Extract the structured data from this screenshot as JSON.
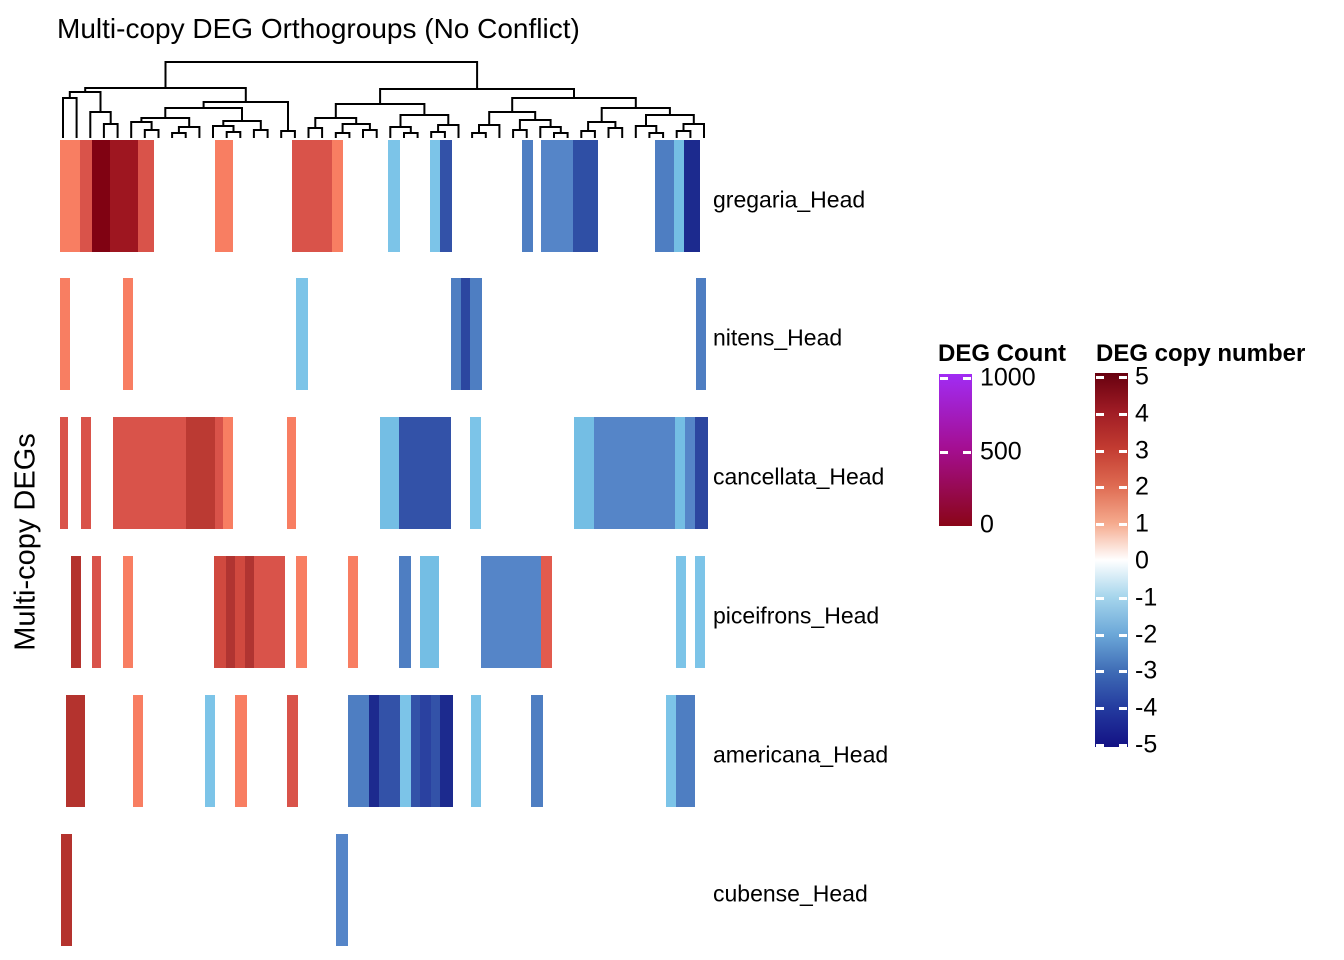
{
  "chart_data": {
    "type": "heatmap",
    "title": "Multi-copy DEG Orthogroups (No Conflict)",
    "ylabel": "Multi-copy DEGs",
    "x_axis_note": "orthogroup columns ordered by top dendrogram (no column labels shown)",
    "color_encoding": "cell color = DEG copy number (red positive, blue negative, white zero/absent)",
    "rows": [
      {
        "label": "gregaria_Head",
        "segments": [
          [
            3,
            20,
            "#F87E62",
            1
          ],
          [
            23,
            12,
            "#D9534A",
            2
          ],
          [
            35,
            18,
            "#800212",
            5
          ],
          [
            53,
            28,
            "#9E1620",
            4
          ],
          [
            81,
            16,
            "#D9534A",
            2
          ],
          [
            158,
            18,
            "#F87E62",
            1
          ],
          [
            235,
            40,
            "#D9534A",
            2
          ],
          [
            275,
            11,
            "#F87E62",
            1
          ],
          [
            331,
            12,
            "#7CC4E8",
            -1
          ],
          [
            373,
            10,
            "#7CC4E8",
            -1
          ],
          [
            383,
            12,
            "#3352A8",
            -3
          ],
          [
            465,
            11,
            "#4E7EC2",
            -2
          ],
          [
            484,
            32,
            "#5585C8",
            -2
          ],
          [
            516,
            25,
            "#2F4FA5",
            -3
          ],
          [
            598,
            19,
            "#4E7EC2",
            -2
          ],
          [
            617,
            10,
            "#74BEE4",
            -1
          ],
          [
            627,
            16,
            "#1C2A8E",
            -4
          ]
        ]
      },
      {
        "label": "nitens_Head",
        "segments": [
          [
            3,
            10,
            "#F87E62",
            1
          ],
          [
            66,
            10,
            "#F87E62",
            1
          ],
          [
            239,
            12,
            "#7CC4E8",
            -1
          ],
          [
            394,
            10,
            "#4E7EC2",
            -2
          ],
          [
            404,
            9,
            "#2C46A0",
            -3
          ],
          [
            413,
            12,
            "#4E7EC2",
            -2
          ],
          [
            639,
            10,
            "#4E7EC2",
            -2
          ]
        ]
      },
      {
        "label": "cancellata_Head",
        "segments": [
          [
            3,
            8,
            "#D9534A",
            2
          ],
          [
            24,
            10,
            "#D9534A",
            2
          ],
          [
            56,
            73,
            "#D9534A",
            2
          ],
          [
            129,
            29,
            "#BB3A33",
            3
          ],
          [
            158,
            8,
            "#D9534A",
            2
          ],
          [
            166,
            10,
            "#F87E62",
            1
          ],
          [
            230,
            9,
            "#F87E62",
            1
          ],
          [
            323,
            19,
            "#74BEE4",
            -1
          ],
          [
            342,
            52,
            "#3352A8",
            -3
          ],
          [
            413,
            11,
            "#7CC4E8",
            -1
          ],
          [
            517,
            20,
            "#74BEE4",
            -1
          ],
          [
            537,
            81,
            "#5585C8",
            -2
          ],
          [
            618,
            10,
            "#74BEE4",
            -1
          ],
          [
            628,
            10,
            "#5585C8",
            -2
          ],
          [
            638,
            13,
            "#2C46A0",
            -3
          ]
        ]
      },
      {
        "label": "piceifrons_Head",
        "segments": [
          [
            14,
            10,
            "#B4332E",
            3
          ],
          [
            35,
            9,
            "#D9534A",
            2
          ],
          [
            66,
            10,
            "#F87E62",
            1
          ],
          [
            157,
            12,
            "#D0493F",
            2
          ],
          [
            169,
            9,
            "#B03431",
            3
          ],
          [
            178,
            10,
            "#D0493F",
            2
          ],
          [
            188,
            9,
            "#B03431",
            3
          ],
          [
            197,
            31,
            "#D9534A",
            2
          ],
          [
            239,
            11,
            "#F87E62",
            1
          ],
          [
            291,
            10,
            "#F87E62",
            1
          ],
          [
            342,
            12,
            "#4E7EC2",
            -2
          ],
          [
            363,
            19,
            "#74BEE4",
            -1
          ],
          [
            424,
            60,
            "#5585C8",
            -2
          ],
          [
            484,
            11,
            "#E25B4E",
            2
          ],
          [
            619,
            10,
            "#7CC4E8",
            -1
          ],
          [
            638,
            10,
            "#7CC4E8",
            -1
          ]
        ]
      },
      {
        "label": "americana_Head",
        "segments": [
          [
            9,
            19,
            "#B4332E",
            3
          ],
          [
            76,
            10,
            "#F87E62",
            1
          ],
          [
            148,
            10,
            "#7CC4E8",
            -1
          ],
          [
            178,
            12,
            "#F87E62",
            1
          ],
          [
            230,
            11,
            "#D9534A",
            2
          ],
          [
            291,
            21,
            "#4E7EC2",
            -2
          ],
          [
            312,
            10,
            "#1C2A8E",
            -4
          ],
          [
            322,
            21,
            "#3352A8",
            -3
          ],
          [
            343,
            11,
            "#7CC4E8",
            -1
          ],
          [
            354,
            9,
            "#3352A8",
            -3
          ],
          [
            363,
            11,
            "#2A41A0",
            -3
          ],
          [
            374,
            9,
            "#3352A8",
            -3
          ],
          [
            383,
            13,
            "#1C2A8E",
            -4
          ],
          [
            414,
            10,
            "#7CC4E8",
            -1
          ],
          [
            474,
            12,
            "#4E7EC2",
            -2
          ],
          [
            609,
            10,
            "#7CC4E8",
            -1
          ],
          [
            619,
            19,
            "#4E7EC2",
            -2
          ]
        ]
      },
      {
        "label": "cubense_Head",
        "segments": [
          [
            4,
            11,
            "#B4332E",
            3
          ],
          [
            279,
            12,
            "#5585C8",
            -2
          ]
        ]
      }
    ],
    "legends": {
      "deg_count": {
        "title": "DEG Count",
        "range": [
          0,
          1000
        ],
        "ticks": [
          {
            "label": "1000",
            "dash": true
          },
          {
            "label": "500",
            "dash": true
          },
          {
            "label": "0",
            "dash": false
          }
        ],
        "gradient": [
          "#A12CF4",
          "#A40E8F",
          "#8A0517"
        ]
      },
      "deg_copy_number": {
        "title": "DEG copy number",
        "range": [
          -5,
          5
        ],
        "ticks": [
          "5",
          "4",
          "3",
          "2",
          "1",
          "0",
          "-1",
          "-2",
          "-3",
          "-4",
          "-5"
        ],
        "gradient": [
          "#67000F",
          "#9E1B24",
          "#C23B31",
          "#DE6A51",
          "#F5A98C",
          "#FFFFFF",
          "#A5D5EC",
          "#6BA7D8",
          "#3E6BB5",
          "#23399E",
          "#131184"
        ]
      }
    },
    "dendrogram": {
      "leaf_count": 48,
      "tree": [
        62,
        [
          88,
          [
            92,
            [
              98,
              0,
              0
            ],
            [
              112,
              0,
              [
                124,
                0,
                0
              ]
            ]
          ],
          [
            102,
            [
              108,
              [
                118,
                [
                  122,
                  0,
                  [
                    130,
                    0,
                    0
                  ]
                ],
                [
                  127,
                  [
                    133,
                    0,
                    0
                  ],
                  0
                ]
              ],
              [
                121,
                [
                  126,
                  0,
                  [
                    132,
                    0,
                    0
                  ]
                ],
                [
                  130,
                  0,
                  0
                ]
              ]
            ],
            [
              131,
              0,
              0
            ]
          ]
        ],
        [
          89,
          [
            104,
            [
              118,
              [
                128,
                0,
                0
              ],
              [
                124,
                [
                  133,
                  0,
                  0
                ],
                [
                  130,
                  0,
                  0
                ]
              ]
            ],
            [
              115,
              [
                127,
                0,
                [
                  133,
                  0,
                  0
                ]
              ],
              [
                125,
                [
                  132,
                  0,
                  0
                ],
                0
              ]
            ]
          ],
          [
            98,
            [
              112,
              [
                125,
                [
                  133,
                  0,
                  0
                ],
                0
              ],
              [
                120,
                [
                  130,
                  0,
                  0
                ],
                [
                  127,
                  0,
                  [
                    133,
                    0,
                    0
                  ]
                ]
              ]
            ],
            [
              108,
              [
                122,
                [
                  131,
                  0,
                  0
                ],
                [
                  128,
                  0,
                  0
                ]
              ],
              [
                115,
                [
                  126,
                  0,
                  [
                    133,
                    0,
                    0
                  ]
                ],
                [
                  124,
                  [
                    131,
                    0,
                    0
                  ],
                  0
                ]
              ]
            ]
          ]
        ]
      ]
    }
  }
}
